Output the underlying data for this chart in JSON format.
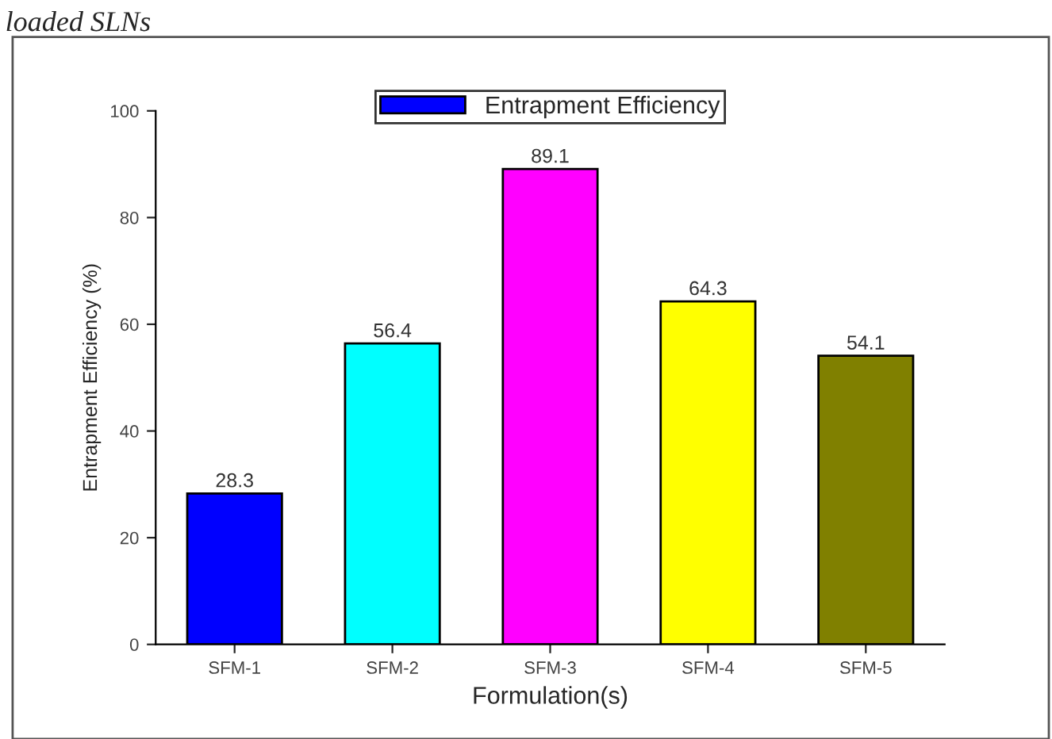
{
  "chart_data": {
    "type": "bar",
    "title": "loaded SLNs",
    "xlabel": "Formulation(s)",
    "ylabel": "Entrapment Efficiency (%)",
    "categories": [
      "SFM-1",
      "SFM-2",
      "SFM-3",
      "SFM-4",
      "SFM-5"
    ],
    "series": [
      {
        "name": "Entrapment Efficiency",
        "color": "#0000ff",
        "colors": [
          "#0000ff",
          "#00ffff",
          "#ff00ff",
          "#ffff00",
          "#808000"
        ],
        "values": [
          28.3,
          56.4,
          89.1,
          64.3,
          54.1
        ]
      }
    ],
    "ylim": [
      0,
      100
    ],
    "yticks": [
      0,
      20,
      40,
      60,
      80,
      100
    ],
    "data_labels": true,
    "legend": "top",
    "grid": false
  }
}
